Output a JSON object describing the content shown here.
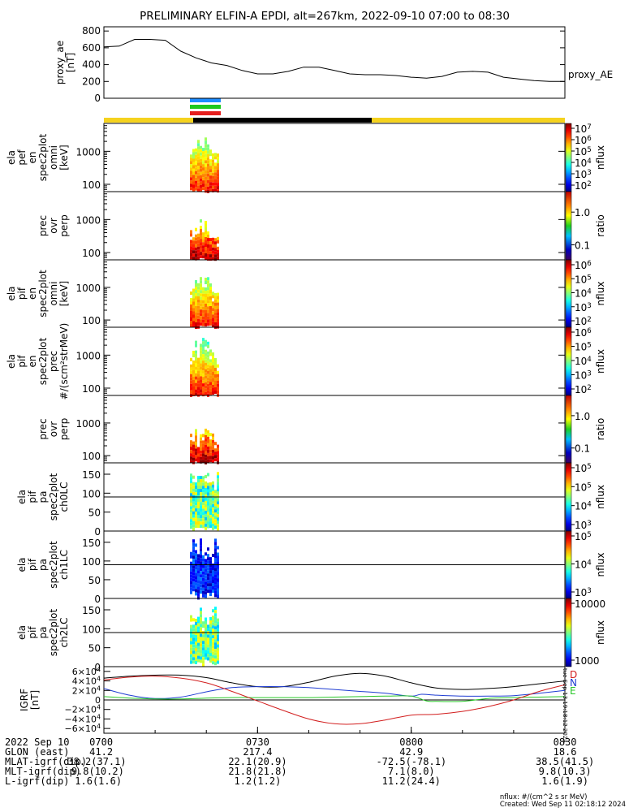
{
  "title": "PRELIMINARY ELFIN-A EPDI, alt=267km, 2022-09-10 07:00 to 08:30",
  "colors": {
    "yellow_bar": "#f5d21e",
    "black_bar": "#000000",
    "marker_blue": "#1e8cff",
    "marker_green": "#1ec81e",
    "marker_red": "#e61e1e",
    "igrf_n": "#1e3cd2",
    "igrf_e": "#28c828",
    "igrf_d": "#d21e1e"
  },
  "chart_data": [
    {
      "type": "line",
      "name": "proxy_ae",
      "ylabel": "proxy_ae\n[nT]",
      "legend": "proxy_AE",
      "ylim": [
        0,
        850
      ],
      "yticks": [
        "0",
        "200",
        "400",
        "600",
        "800"
      ],
      "xlim": [
        0,
        90
      ],
      "x": [
        0,
        3,
        6,
        9,
        12,
        15,
        18,
        21,
        24,
        27,
        30,
        33,
        36,
        39,
        42,
        45,
        48,
        51,
        54,
        57,
        60,
        63,
        66,
        69,
        72,
        75,
        78,
        81,
        84,
        87,
        90
      ],
      "y": [
        610,
        620,
        700,
        700,
        690,
        560,
        480,
        420,
        390,
        330,
        290,
        290,
        320,
        370,
        370,
        330,
        290,
        280,
        280,
        270,
        250,
        240,
        260,
        310,
        320,
        310,
        250,
        230,
        210,
        200,
        200
      ]
    },
    {
      "type": "heatmap",
      "name": "ela_pef_en_spec2plot_omni",
      "ylabel": "ela\npef\nen\nspec2plot\nomni\n[keV]",
      "yscale": "log",
      "ylim": [
        60,
        7000
      ],
      "yticks": [
        "100",
        "1000"
      ],
      "colorbar": {
        "label": "nflux",
        "scale": "log",
        "ticks": [
          "10^2",
          "10^3",
          "10^4",
          "10^5",
          "10^6",
          "10^7"
        ]
      }
    },
    {
      "type": "heatmap",
      "name": "prec_ovr_perp_pef",
      "ylabel": "prec\novr\nperp",
      "yscale": "log",
      "ylim": [
        60,
        7000
      ],
      "yticks": [
        "100",
        "1000"
      ],
      "colorbar": {
        "label": "ratio",
        "scale": "log",
        "ticks": [
          "0.1",
          "1.0"
        ]
      }
    },
    {
      "type": "heatmap",
      "name": "ela_pif_en_spec2plot_omni",
      "ylabel": "ela\npif\nen\nspec2plot\nomni\n[keV]",
      "yscale": "log",
      "ylim": [
        60,
        7000
      ],
      "yticks": [
        "100",
        "1000"
      ],
      "colorbar": {
        "label": "nflux",
        "scale": "log",
        "ticks": [
          "10^2",
          "10^3",
          "10^4",
          "10^5",
          "10^6"
        ]
      }
    },
    {
      "type": "heatmap",
      "name": "ela_pif_en_spec2plot_prec",
      "ylabel": "ela\npif\nen\nspec2plot\nprec\n#/(scm²strMeV)",
      "yscale": "log",
      "ylim": [
        60,
        7000
      ],
      "yticks": [
        "100",
        "1000"
      ],
      "colorbar": {
        "label": "nflux",
        "scale": "log",
        "ticks": [
          "10^2",
          "10^3",
          "10^4",
          "10^5",
          "10^6"
        ]
      }
    },
    {
      "type": "heatmap",
      "name": "prec_ovr_perp_pif",
      "ylabel": "prec\novr\nperp",
      "yscale": "log",
      "ylim": [
        60,
        7000
      ],
      "yticks": [
        "100",
        "1000"
      ],
      "colorbar": {
        "label": "ratio",
        "scale": "log",
        "ticks": [
          "0.1",
          "1.0"
        ]
      }
    },
    {
      "type": "heatmap",
      "name": "ela_pif_pa_spec2plot_ch0LC",
      "ylabel": "ela\npif\npa\nspec2plot\nch0LC",
      "ylim": [
        0,
        180
      ],
      "yticks": [
        "0",
        "50",
        "100",
        "150"
      ],
      "reference_line": 90,
      "colorbar": {
        "label": "nflux",
        "scale": "log",
        "ticks": [
          "10^3",
          "10^4",
          "10^5",
          "10^5"
        ]
      }
    },
    {
      "type": "heatmap",
      "name": "ela_pif_pa_spec2plot_ch1LC",
      "ylabel": "ela\npif\npa\nspec2plot\nch1LC",
      "ylim": [
        0,
        180
      ],
      "yticks": [
        "0",
        "50",
        "100",
        "150"
      ],
      "reference_line": 90,
      "colorbar": {
        "label": "nflux",
        "scale": "log",
        "ticks": [
          "10^3",
          "10^4",
          "10^5"
        ]
      }
    },
    {
      "type": "heatmap",
      "name": "ela_pif_pa_spec2plot_ch2LC",
      "ylabel": "ela\npif\npa\nspec2plot\nch2LC",
      "ylim": [
        0,
        180
      ],
      "yticks": [
        "0",
        "50",
        "100",
        "150"
      ],
      "reference_line": 90,
      "colorbar": {
        "label": "nflux",
        "scale": "log",
        "ticks": [
          "1000",
          "10000"
        ]
      }
    },
    {
      "type": "line",
      "name": "IGRF",
      "ylabel": "IGRF\n[nT]",
      "ylim": [
        -70000,
        70000
      ],
      "yticks": [
        "−6×10^4",
        "−4×10^4",
        "−2×10^4",
        "0",
        "2×10^4",
        "4×10^4",
        "6×10^4"
      ],
      "side_text": "tue Sep 13 19:18:12 2024",
      "series": [
        {
          "name": "",
          "color": "#000000",
          "x": [
            0,
            5,
            10,
            15,
            20,
            25,
            30,
            35,
            40,
            45,
            50,
            55,
            60,
            65,
            70,
            75,
            80,
            85,
            90
          ],
          "y": [
            46000,
            50000,
            52000,
            52000,
            47000,
            36000,
            28000,
            28000,
            37000,
            50000,
            56000,
            50000,
            36000,
            25000,
            22000,
            24000,
            28000,
            34000,
            40000
          ]
        },
        {
          "name": "N",
          "color": "#1e3cd2",
          "x": [
            0,
            5,
            10,
            15,
            20,
            25,
            30,
            35,
            40,
            45,
            50,
            55,
            60,
            62,
            65,
            70,
            75,
            80,
            85,
            90
          ],
          "y": [
            24000,
            10000,
            3000,
            6000,
            17000,
            26000,
            28000,
            28000,
            26000,
            22000,
            18000,
            14000,
            8000,
            12000,
            10000,
            8000,
            8000,
            9000,
            14000,
            20000
          ]
        },
        {
          "name": "E",
          "color": "#28c828",
          "x": [
            0,
            5,
            10,
            15,
            20,
            25,
            30,
            35,
            40,
            45,
            50,
            55,
            60,
            63,
            65,
            70,
            75,
            80,
            85,
            90
          ],
          "y": [
            7000,
            4000,
            2000,
            2000,
            4000,
            5000,
            5000,
            5000,
            5000,
            6000,
            7000,
            8000,
            8000,
            -2000,
            -3000,
            -3000,
            3000,
            5000,
            6000,
            7000
          ]
        },
        {
          "name": "D",
          "color": "#d21e1e",
          "x": [
            0,
            5,
            10,
            15,
            20,
            25,
            30,
            35,
            40,
            45,
            50,
            55,
            60,
            65,
            70,
            75,
            80,
            85,
            90
          ],
          "y": [
            42000,
            48000,
            50000,
            46000,
            36000,
            18000,
            -2000,
            -22000,
            -40000,
            -50000,
            -50000,
            -42000,
            -32000,
            -30000,
            -24000,
            -14000,
            0,
            18000,
            32000
          ]
        }
      ]
    }
  ],
  "footer": {
    "times": [
      "0700",
      "0730",
      "0800",
      "0830"
    ],
    "rows": [
      {
        "label": "2022 Sep 10",
        "values": [
          "0700",
          "0730",
          "0800",
          "0830"
        ]
      },
      {
        "label": "GLON (east)",
        "values": [
          "41.2",
          "217.4",
          "42.9",
          "18.6"
        ]
      },
      {
        "label": "MLAT-igrf(dip)",
        "values": [
          "38.2(37.1)",
          "22.1(20.9)",
          "-72.5(-78.1)",
          "38.5(41.5)"
        ]
      },
      {
        "label": "MLT-igrf(dip)",
        "values": [
          "9.8(10.2)",
          "21.8(21.8)",
          "7.1(8.0)",
          "9.8(10.3)"
        ]
      },
      {
        "label": "L-igrf(dip)",
        "values": [
          "1.6(1.6)",
          "1.2(1.2)",
          "11.2(24.4)",
          "1.6(1.9)"
        ]
      }
    ],
    "units_note": "nflux: #/(cm^2 s sr MeV)",
    "created": "Created: Wed Sep 11 02:18:12 2024"
  }
}
